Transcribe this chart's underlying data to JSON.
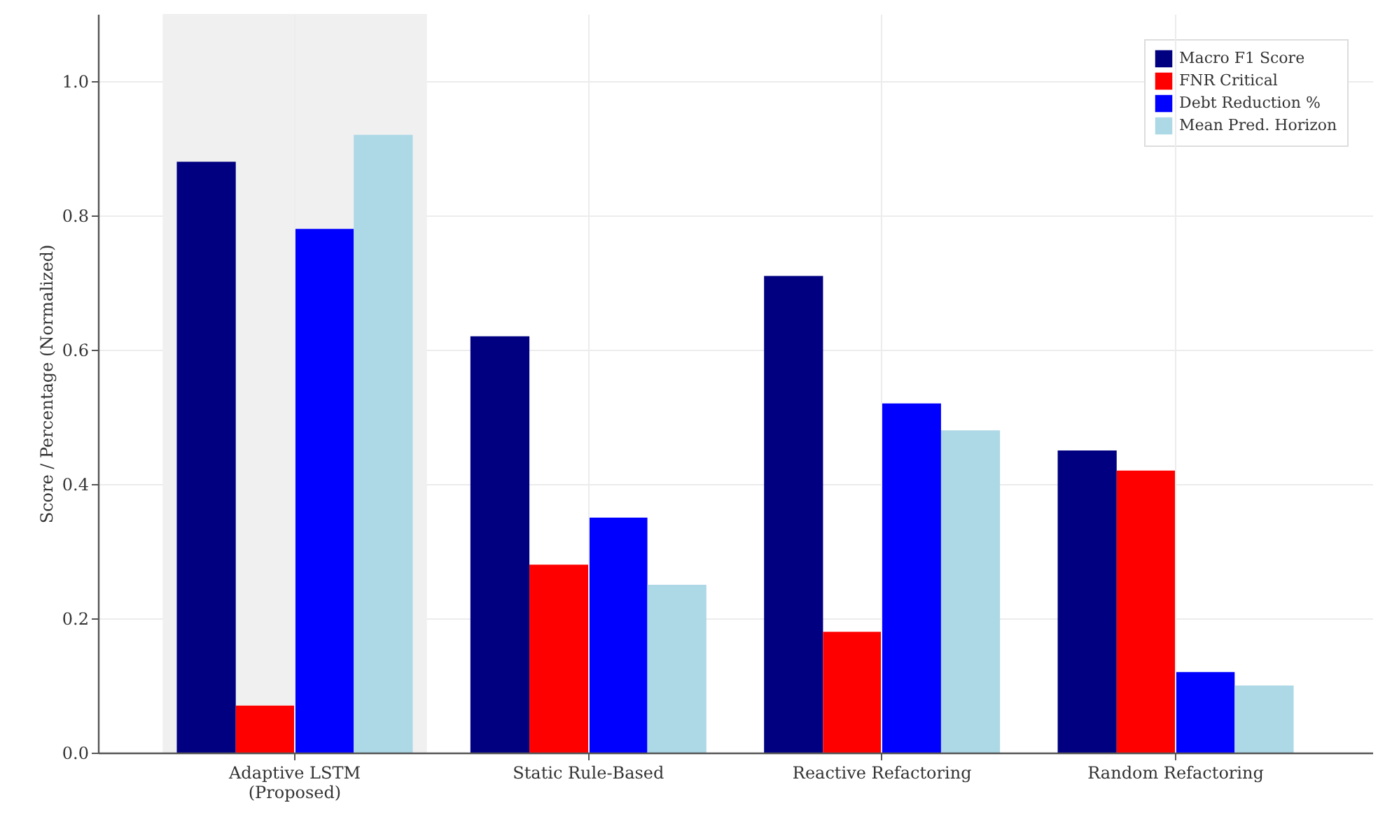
{
  "chart_data": {
    "type": "bar",
    "ylabel": "Score / Percentage (Normalized)",
    "categories": [
      "Adaptive LSTM\n(Proposed)",
      "Static Rule-Based",
      "Reactive Refactoring",
      "Random Refactoring"
    ],
    "series": [
      {
        "name": "Macro F1 Score",
        "color": "#000080",
        "values": [
          0.88,
          0.62,
          0.71,
          0.45
        ]
      },
      {
        "name": "FNR Critical",
        "color": "#ff0000",
        "values": [
          0.07,
          0.28,
          0.18,
          0.42
        ]
      },
      {
        "name": "Debt Reduction %",
        "color": "#0000ff",
        "values": [
          0.78,
          0.35,
          0.52,
          0.12
        ]
      },
      {
        "name": "Mean Pred. Horizon",
        "color": "#add8e6",
        "values": [
          0.92,
          0.25,
          0.48,
          0.1
        ]
      }
    ],
    "ylim": [
      0,
      1.1
    ],
    "yticks": [
      {
        "value": 0,
        "label": "0.0"
      },
      {
        "value": 0.2,
        "label": "0.2"
      },
      {
        "value": 0.4,
        "label": "0.4"
      },
      {
        "value": 0.6,
        "label": "0.6"
      },
      {
        "value": 0.8,
        "label": "0.8"
      },
      {
        "value": 1,
        "label": "1.0"
      }
    ],
    "bands": [
      {
        "axis": "x",
        "from": "Adaptive LSTM\n(Proposed)",
        "to": "Adaptive LSTM\n(Proposed)",
        "color": "#f0f0f0"
      }
    ],
    "grid": true,
    "legend": "top right"
  }
}
